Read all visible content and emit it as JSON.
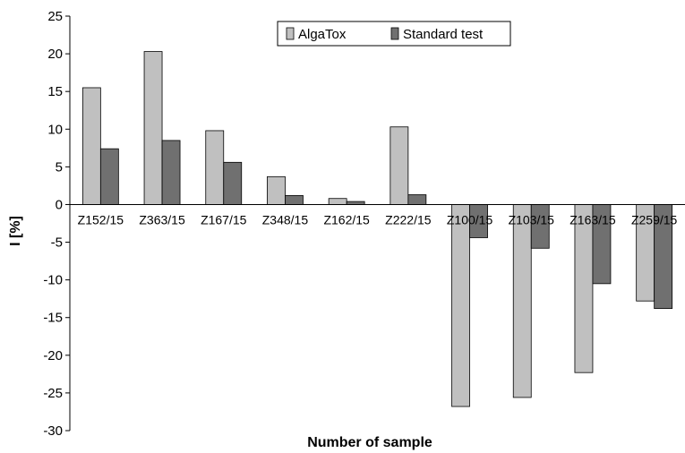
{
  "chart_data": {
    "type": "bar",
    "categories": [
      "Z152/15",
      "Z363/15",
      "Z167/15",
      "Z348/15",
      "Z162/15",
      "Z222/15",
      "Z100/15",
      "Z103/15",
      "Z163/15",
      "Z259/15"
    ],
    "series": [
      {
        "name": "AlgaTox",
        "values": [
          15.5,
          20.3,
          9.8,
          3.7,
          0.8,
          10.3,
          -26.8,
          -25.6,
          -22.3,
          -12.8
        ],
        "color": "#c0c0c0"
      },
      {
        "name": "Standard test",
        "values": [
          7.4,
          8.5,
          5.6,
          1.2,
          0.4,
          1.3,
          -4.4,
          -5.8,
          -10.5,
          -13.8
        ],
        "color": "#707070"
      }
    ],
    "title": "",
    "xlabel": "Number of sample",
    "ylabel": "I [%]",
    "ylim": [
      -30,
      25
    ],
    "yticks": [
      25,
      20,
      15,
      10,
      5,
      0,
      -5,
      -10,
      -15,
      -20,
      -25,
      -30
    ],
    "grid": false,
    "legend_position": "top-center"
  }
}
